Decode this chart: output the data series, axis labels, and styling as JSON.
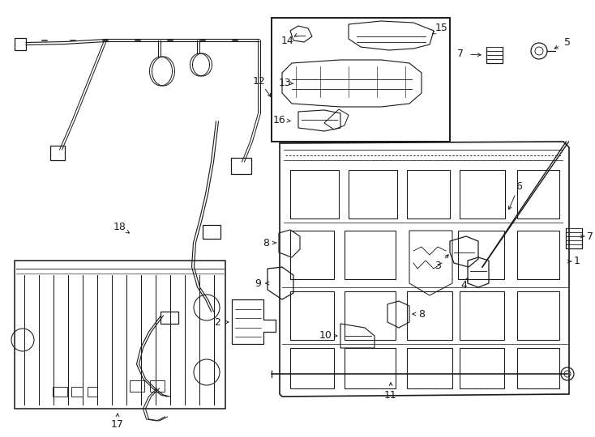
{
  "bg_color": "#ffffff",
  "line_color": "#1a1a1a",
  "fig_width": 7.34,
  "fig_height": 5.4,
  "dpi": 100,
  "lw": 0.9
}
